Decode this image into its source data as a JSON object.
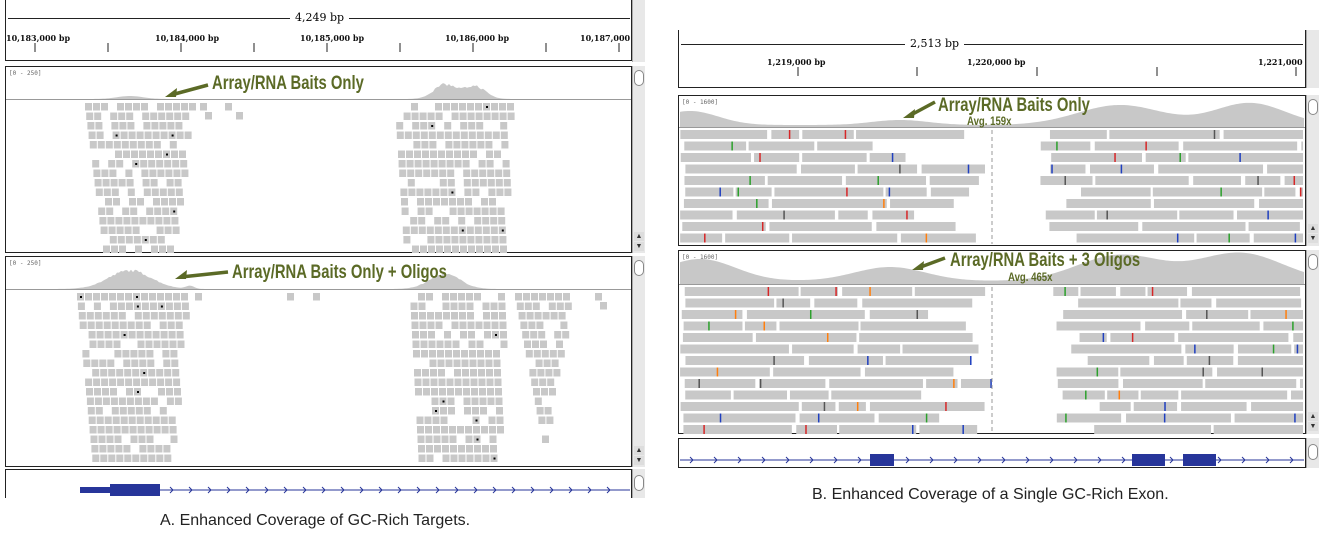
{
  "panel_a": {
    "span": "4,249 bp",
    "ticks": [
      "10,183,000 bp",
      "10,184,000 bp",
      "10,185,000 bp",
      "10,186,000 bp",
      "10,187,000"
    ],
    "track1": {
      "range": "[0 - 250]",
      "label": "Array/RNA Baits Only"
    },
    "track2": {
      "range": "[0 - 250]",
      "label": "Array/RNA Baits Only + Oligos"
    },
    "caption": "A. Enhanced Coverage of GC-Rich Targets."
  },
  "panel_b": {
    "span": "2,513 bp",
    "ticks": [
      "1,219,000 bp",
      "1,220,000 bp",
      "1,221,000"
    ],
    "track1": {
      "range": "[0 - 1600]",
      "label": "Array/RNA Baits Only",
      "avg": "Avg. 159x"
    },
    "track2": {
      "range": "[0 - 1600]",
      "label": "Array/RNA Baits + 3 Oligos",
      "avg": "Avg. 465x"
    },
    "caption": "B. Enhanced Coverage of a Single GC-Rich Exon."
  },
  "colors": {
    "read": "#c8c8c8",
    "coverage": "#c8c8c8",
    "annotation": "#5b6a26",
    "gene": "#27359a"
  }
}
